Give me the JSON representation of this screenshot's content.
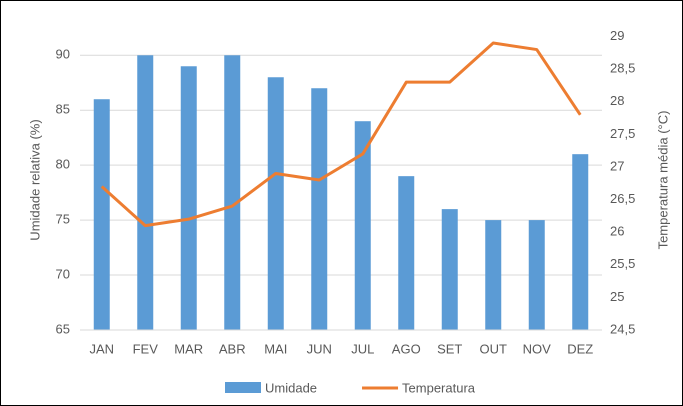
{
  "chart_data": {
    "type": "bar_line",
    "categories": [
      "JAN",
      "FEV",
      "MAR",
      "ABR",
      "MAI",
      "JUN",
      "JUL",
      "AGO",
      "SET",
      "OUT",
      "NOV",
      "DEZ"
    ],
    "series": [
      {
        "name": "Umidade",
        "type": "bar",
        "color": "#5b9bd5",
        "values": [
          86,
          90,
          89,
          90,
          88,
          87,
          84,
          79,
          76,
          75,
          75,
          81
        ]
      },
      {
        "name": "Temperatura",
        "type": "line",
        "axis": "y2",
        "color": "#ed7d31",
        "values": [
          26.7,
          26.1,
          26.2,
          26.4,
          26.9,
          26.8,
          27.2,
          28.3,
          28.3,
          28.9,
          28.8,
          27.8
        ]
      }
    ],
    "ylabel": "Umidade relativa (%)",
    "y2label": "Temperatura média (°C)",
    "ylim": [
      65,
      92.3
    ],
    "yticks": [
      65,
      70,
      75,
      80,
      85,
      90
    ],
    "y2lim": [
      24.5,
      29.1
    ],
    "y2ticks": [
      {
        "value": 24.5,
        "label": "24,5"
      },
      25,
      {
        "value": 25.5,
        "label": "25,5"
      },
      26,
      {
        "value": 26.5,
        "label": "26,5"
      },
      27,
      {
        "value": 27.5,
        "label": "27,5"
      },
      28,
      {
        "value": 28.5,
        "label": "28,5"
      },
      29
    ],
    "grid": true,
    "legend": "bottom"
  }
}
